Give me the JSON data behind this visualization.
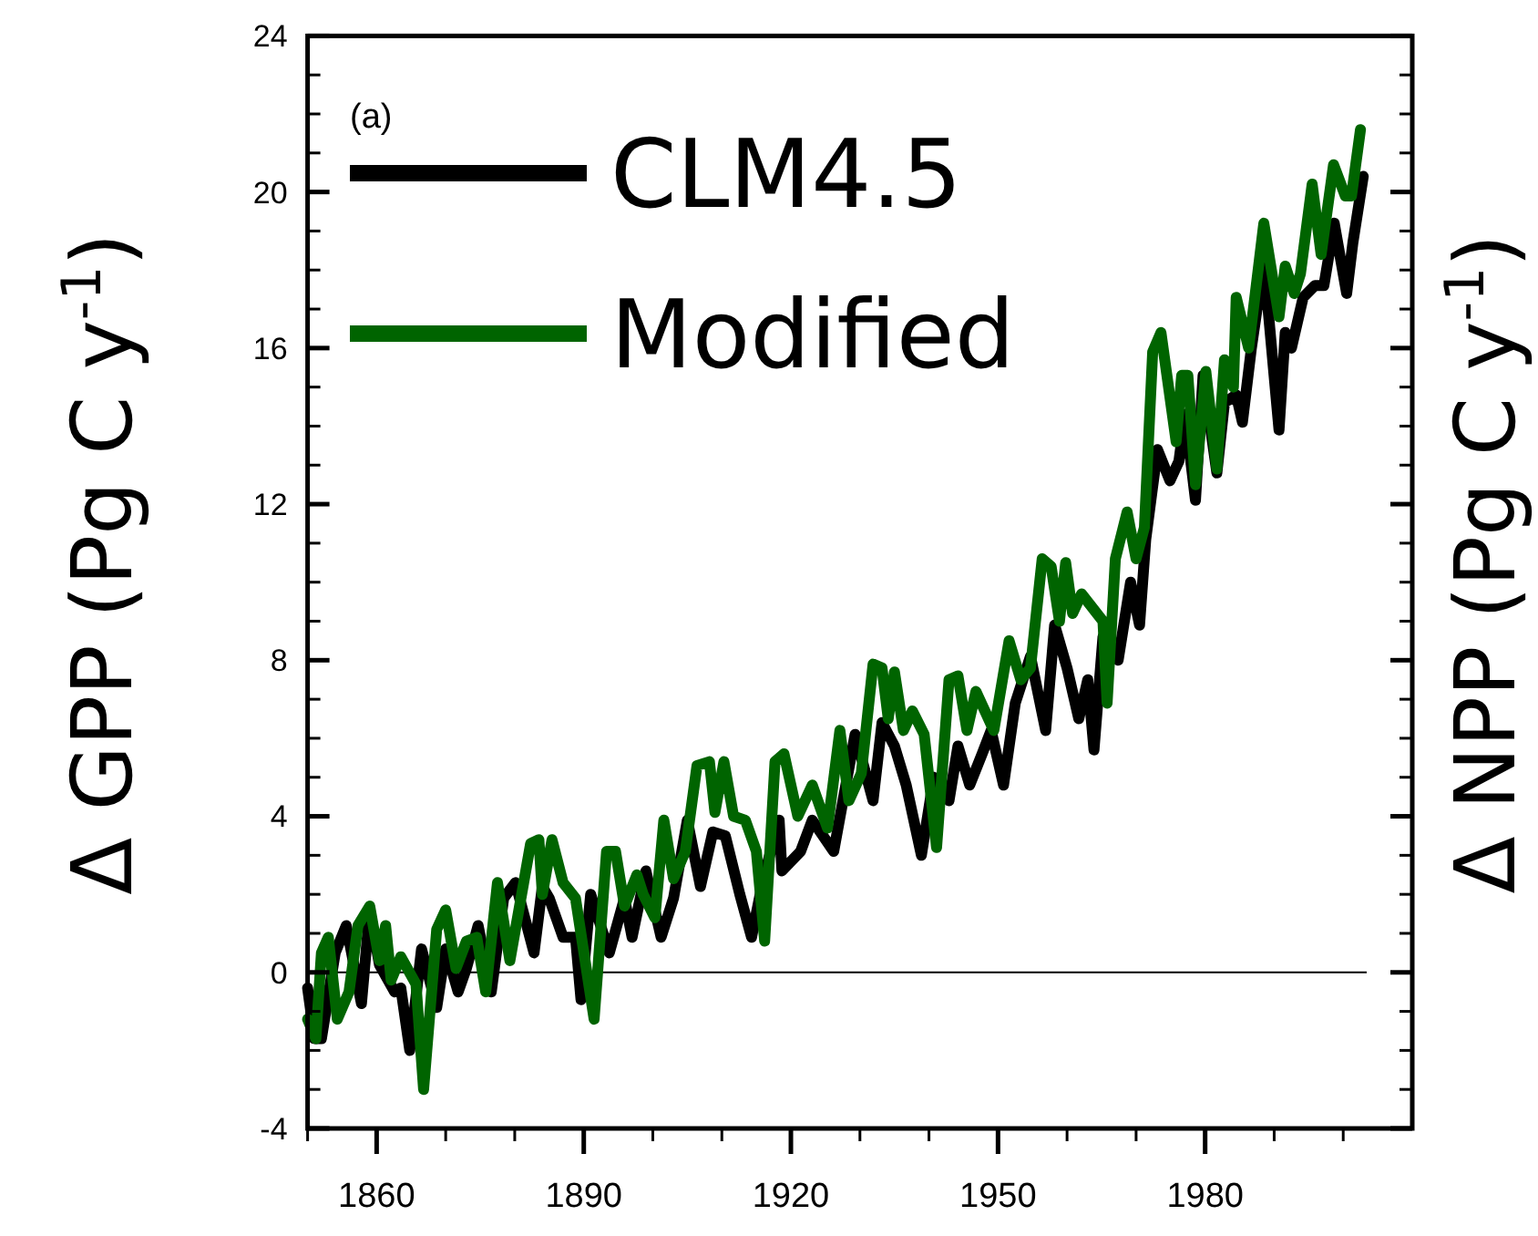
{
  "chart_data": {
    "type": "line",
    "ylabel": "Δ  GPP (Pg C y$^{-1}$)",
    "y2label": "Δ  NPP (Pg C y$^{-1}$)",
    "annotations": [
      "(a)"
    ],
    "xlim": [
      1850,
      2010
    ],
    "xticks": [
      {
        "value": 1850,
        "label": null
      },
      1860,
      {
        "value": 1870,
        "label": null
      },
      {
        "value": 1880,
        "label": null
      },
      1890,
      {
        "value": 1900,
        "label": null
      },
      {
        "value": 1910,
        "label": null
      },
      1920,
      {
        "value": 1930,
        "label": null
      },
      {
        "value": 1940,
        "label": null
      },
      1950,
      {
        "value": 1960,
        "label": null
      },
      {
        "value": 1970,
        "label": null
      },
      1980,
      {
        "value": 1990,
        "label": null
      },
      {
        "value": 2000,
        "label": null
      }
    ],
    "ylim": [
      -4,
      24
    ],
    "yticks": [
      -4,
      {
        "value": -3,
        "label": null
      },
      {
        "value": -2,
        "label": null
      },
      {
        "value": -1,
        "label": null
      },
      0,
      {
        "value": 1,
        "label": null
      },
      {
        "value": 2,
        "label": null
      },
      {
        "value": 3,
        "label": null
      },
      4,
      {
        "value": 5,
        "label": null
      },
      {
        "value": 6,
        "label": null
      },
      {
        "value": 7,
        "label": null
      },
      8,
      {
        "value": 9,
        "label": null
      },
      {
        "value": 10,
        "label": null
      },
      {
        "value": 11,
        "label": null
      },
      12,
      {
        "value": 13,
        "label": null
      },
      {
        "value": 14,
        "label": null
      },
      {
        "value": 15,
        "label": null
      },
      16,
      {
        "value": 17,
        "label": null
      },
      {
        "value": 18,
        "label": null
      },
      {
        "value": 19,
        "label": null
      },
      20,
      {
        "value": 21,
        "label": null
      },
      {
        "value": 22,
        "label": null
      },
      {
        "value": 23,
        "label": null
      },
      24
    ],
    "grid": false,
    "legend": "top left",
    "marker": "none",
    "line_style": "solid",
    "ref_lines": [
      {
        "axis": "y",
        "value": 0,
        "color": "#000000"
      }
    ],
    "series": [
      {
        "name": "CLM4.5",
        "color": "#000000",
        "x": [
          1850,
          1851,
          1852,
          1854,
          1855.6,
          1857.8,
          1859,
          1860.4,
          1862.6,
          1863.5,
          1864.8,
          1866.5,
          1868.7,
          1870,
          1871.8,
          1873,
          1874.7,
          1876.6,
          1878.4,
          1880.1,
          1882.8,
          1884,
          1885,
          1887,
          1888.8,
          1889.6,
          1891,
          1893.7,
          1895.9,
          1897,
          1899,
          1901.2,
          1903,
          1905,
          1906.9,
          1908.7,
          1910.5,
          1912.6,
          1914.3,
          1916,
          1918.3,
          1918.7,
          1921.4,
          1923.1,
          1926.2,
          1929.3,
          1931.9,
          1933.2,
          1935,
          1936.7,
          1938.9,
          1940.7,
          1942.9,
          1944.2,
          1945.9,
          1947.7,
          1949,
          1950.8,
          1952.5,
          1954.7,
          1956.9,
          1958.2,
          1960,
          1961.7,
          1963,
          1963.9,
          1965.2,
          1967.4,
          1969.2,
          1970.5,
          1971.4,
          1973.1,
          1974.9,
          1976.2,
          1977.1,
          1978.6,
          1979.7,
          1981.7,
          1982.8,
          1984.5,
          1985.4,
          1986.7,
          1988.5,
          1990.7,
          1991.6,
          1992.5,
          1994.2,
          1995.9,
          1997.2,
          1998.7,
          2000.5,
          2001.4,
          2002.9
        ],
        "values": [
          -0.4,
          -1.7,
          -1.7,
          0.5,
          1.2,
          -0.8,
          1.6,
          0.2,
          -0.5,
          -0.4,
          -2.0,
          0.6,
          -0.9,
          0.6,
          -0.5,
          0.1,
          1.2,
          -0.5,
          1.9,
          2.3,
          0.5,
          2.2,
          1.9,
          0.9,
          0.9,
          -0.7,
          2.0,
          0.5,
          1.9,
          0.9,
          2.6,
          0.9,
          1.9,
          3.9,
          2.2,
          3.6,
          3.5,
          2.0,
          0.9,
          2.4,
          3.9,
          2.6,
          3.1,
          3.9,
          3.1,
          6.1,
          4.4,
          6.4,
          5.8,
          4.8,
          3.0,
          5.0,
          4.4,
          5.8,
          4.8,
          5.6,
          6.2,
          4.8,
          6.9,
          8.1,
          6.2,
          8.9,
          7.8,
          6.5,
          7.5,
          5.7,
          8.6,
          8.0,
          10.0,
          8.9,
          11.1,
          13.4,
          12.6,
          13.1,
          14.3,
          12.1,
          15.3,
          12.8,
          14.6,
          14.8,
          14.1,
          16.0,
          18.2,
          13.9,
          16.4,
          16.0,
          17.3,
          17.6,
          17.6,
          19.2,
          17.4,
          18.7,
          20.4
        ]
      },
      {
        "name": "Modified",
        "color": "#006400",
        "x": [
          1850,
          1851.2,
          1852,
          1853,
          1854.3,
          1856,
          1857.3,
          1859,
          1860.4,
          1861.3,
          1862.1,
          1863.5,
          1865.7,
          1866.8,
          1868.7,
          1870,
          1871.5,
          1873,
          1874.5,
          1875.8,
          1877.5,
          1879.3,
          1882.3,
          1883.5,
          1884,
          1885.4,
          1887,
          1888.8,
          1891.5,
          1893.3,
          1894.6,
          1895.9,
          1897.7,
          1898.6,
          1900.3,
          1901.6,
          1903,
          1904.7,
          1906.4,
          1908.2,
          1909,
          1910.3,
          1911.7,
          1913.4,
          1915,
          1916.2,
          1917.7,
          1919,
          1921,
          1923.1,
          1925.3,
          1927.1,
          1928.4,
          1930.2,
          1931.9,
          1933.2,
          1934.1,
          1935,
          1936.3,
          1937.6,
          1939.3,
          1941.1,
          1942.9,
          1944.2,
          1945.5,
          1946.8,
          1949.4,
          1951.6,
          1953.3,
          1954.7,
          1956.4,
          1957.7,
          1958.9,
          1959.8,
          1960.8,
          1962.1,
          1965.2,
          1965.8,
          1967,
          1968.7,
          1970,
          1971.2,
          1972.4,
          1973.6,
          1975.8,
          1976.6,
          1977.5,
          1978.6,
          1980.1,
          1981.7,
          1982.8,
          1984.1,
          1984.5,
          1986.3,
          1988.5,
          1990.7,
          1991.6,
          1992.9,
          1993.8,
          1995.5,
          1996.8,
          1998.6,
          2000.3,
          2001.2,
          2002.5
        ],
        "values": [
          -1.2,
          -1.7,
          0.5,
          0.9,
          -1.2,
          -0.5,
          1.2,
          1.7,
          0.3,
          1.2,
          -0.2,
          0.4,
          -0.3,
          -3.0,
          1.1,
          1.6,
          0.1,
          0.8,
          0.9,
          -0.5,
          2.3,
          0.3,
          3.3,
          3.4,
          2.0,
          3.4,
          2.3,
          1.9,
          -1.2,
          3.1,
          3.1,
          1.7,
          2.5,
          2.0,
          1.4,
          3.9,
          2.4,
          3.1,
          5.3,
          5.4,
          4.1,
          5.4,
          4.0,
          3.9,
          3.1,
          0.8,
          5.4,
          5.6,
          4.0,
          4.8,
          3.7,
          6.2,
          4.4,
          5.1,
          7.9,
          7.8,
          6.5,
          7.7,
          6.2,
          6.7,
          6.1,
          3.2,
          7.5,
          7.6,
          6.2,
          7.2,
          6.2,
          8.5,
          7.5,
          7.8,
          10.6,
          10.4,
          9.0,
          10.5,
          9.2,
          9.7,
          9.0,
          6.9,
          10.6,
          11.8,
          10.6,
          11.4,
          15.9,
          16.4,
          13.6,
          15.3,
          15.3,
          12.5,
          15.4,
          12.9,
          15.7,
          15.0,
          17.3,
          16.0,
          19.2,
          16.8,
          18.1,
          17.4,
          17.9,
          20.2,
          18.4,
          20.7,
          19.9,
          19.9,
          21.6
        ]
      }
    ]
  }
}
